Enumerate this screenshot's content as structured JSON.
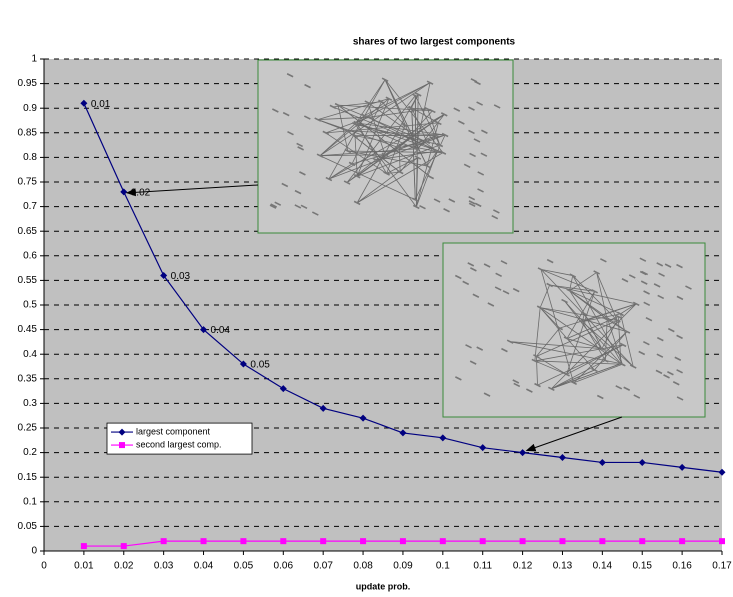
{
  "chart_data": {
    "type": "line",
    "title": "shares of two largest components",
    "x_label": "update prob.",
    "x": [
      0.01,
      0.02,
      0.03,
      0.04,
      0.05,
      0.06,
      0.07,
      0.08,
      0.09,
      0.1,
      0.11,
      0.12,
      0.13,
      0.14,
      0.15,
      0.16,
      0.17
    ],
    "series": [
      {
        "name": "largest component",
        "color": "#000080",
        "marker": "diamond",
        "values": [
          0.91,
          0.73,
          0.56,
          0.45,
          0.38,
          0.33,
          0.29,
          0.27,
          0.24,
          0.23,
          0.21,
          0.2,
          0.19,
          0.18,
          0.18,
          0.17,
          0.16
        ],
        "labels": [
          "0.01",
          "0.02",
          "0.03",
          "0.04",
          "0.05",
          null,
          null,
          null,
          null,
          null,
          null,
          null,
          null,
          null,
          null,
          null,
          null
        ]
      },
      {
        "name": "second largest comp.",
        "color": "#ff00ff",
        "marker": "square",
        "values": [
          0.01,
          0.01,
          0.02,
          0.02,
          0.02,
          0.02,
          0.02,
          0.02,
          0.02,
          0.02,
          0.02,
          0.02,
          0.02,
          0.02,
          0.02,
          0.02,
          0.02
        ]
      }
    ],
    "xlim": [
      0,
      0.17
    ],
    "xticks": [
      0,
      0.01,
      0.02,
      0.03,
      0.04,
      0.05,
      0.06,
      0.07,
      0.08,
      0.09,
      0.1,
      0.11,
      0.12,
      0.13,
      0.14,
      0.15,
      0.16,
      0.17
    ],
    "ylim": [
      0,
      1
    ],
    "yticks": [
      0,
      0.05,
      0.1,
      0.15,
      0.2,
      0.25,
      0.3,
      0.35,
      0.4,
      0.45,
      0.5,
      0.55,
      0.6,
      0.65,
      0.7,
      0.75,
      0.8,
      0.85,
      0.9,
      0.95,
      1
    ],
    "grid": true,
    "legend": "lower-left",
    "background": "#c0c0c0"
  }
}
